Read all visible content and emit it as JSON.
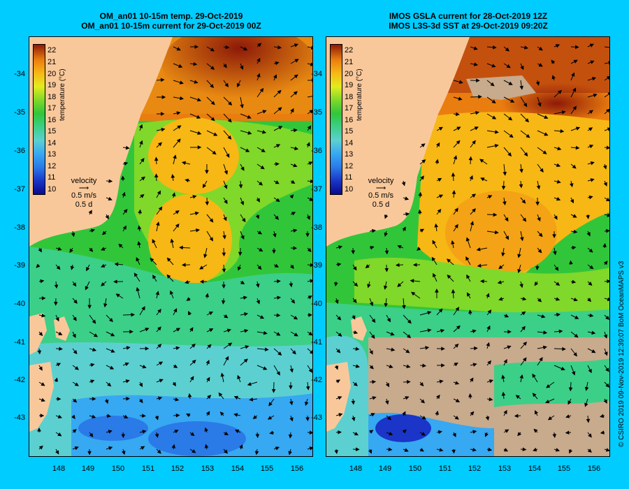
{
  "titles": {
    "left": [
      "OM_an01 10-15m temp. 29-Oct-2019",
      "OM_an01 10-15m current for 29-Oct-2019 00Z"
    ],
    "right": [
      "IMOS GSLA current for 28-Oct-2019 12Z",
      "IMOS L3S-3d SST at 29-Oct-2019 09:20Z"
    ]
  },
  "colorbar": {
    "ticks": [
      "22",
      "21",
      "20",
      "19",
      "18",
      "17",
      "16",
      "15",
      "14",
      "13",
      "12",
      "11",
      "10"
    ],
    "label": "temperature (°C)"
  },
  "velocity_legend": {
    "title": "velocity",
    "speed": "0.5 m/s",
    "duration": "0.5 d"
  },
  "axes": {
    "lat_ticks": [
      "-34",
      "-35",
      "-36",
      "-37",
      "-38",
      "-39",
      "-40",
      "-41",
      "-42",
      "-43"
    ],
    "lon_ticks": [
      "148",
      "149",
      "150",
      "151",
      "152",
      "153",
      "154",
      "155",
      "156"
    ]
  },
  "credit": "© CSIRO 2019   09-Nov-2019 12:39:07 BoM OceanMAPS v3",
  "colors": {
    "land": "#f9c89a",
    "no_data": "#c8aa8c",
    "background": "#00ccff"
  }
}
